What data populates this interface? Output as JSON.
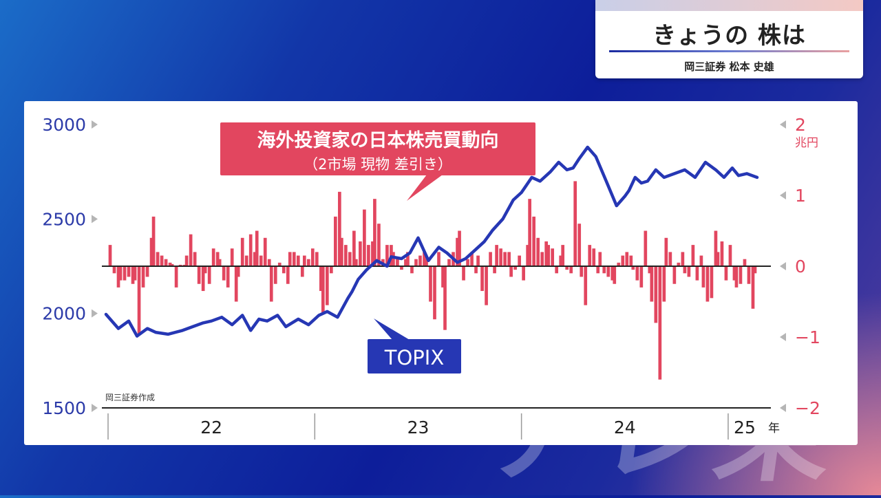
{
  "header": {
    "title": "きょうの 株は",
    "speaker": "岡三証券 松本 史雄"
  },
  "watermark": "テレ東",
  "colors": {
    "topix": "#2637b4",
    "flow": "#e2465f",
    "left_axis": "#2b3aa8",
    "right_axis": "#e2465f"
  },
  "chart_data": {
    "type": "line+bar",
    "x_axis": {
      "labels": [
        "22",
        "23",
        "24",
        "25"
      ],
      "unit": "年",
      "range": [
        "2022-01",
        "2025-01"
      ]
    },
    "y_left": {
      "name": "TOPIX",
      "ticks": [
        "3000",
        "2500",
        "2000",
        "1500"
      ],
      "range": [
        1500,
        3000
      ]
    },
    "y_right": {
      "unit": "兆円",
      "ticks": [
        "2",
        "1",
        "0",
        "−1",
        "−2"
      ],
      "range": [
        -2,
        2
      ]
    },
    "annotations": {
      "flow_title": "海外投資家の日本株売買動向",
      "flow_subtitle": "（2市場 現物 差引き）",
      "topix_label": "TOPIX",
      "source": "岡三証券作成"
    },
    "series": [
      {
        "name": "TOPIX",
        "type": "line",
        "x": [
          2021.99,
          2022.05,
          2022.1,
          2022.14,
          2022.19,
          2022.23,
          2022.29,
          2022.36,
          2022.41,
          2022.46,
          2022.5,
          2022.55,
          2022.6,
          2022.65,
          2022.69,
          2022.73,
          2022.77,
          2022.82,
          2022.86,
          2022.92,
          2022.97,
          2023.02,
          2023.06,
          2023.11,
          2023.16,
          2023.18,
          2023.21,
          2023.25,
          2023.3,
          2023.35,
          2023.37,
          2023.42,
          2023.46,
          2023.5,
          2023.55,
          2023.6,
          2023.64,
          2023.69,
          2023.73,
          2023.78,
          2023.82,
          2023.86,
          2023.91,
          2023.96,
          2024.0,
          2024.05,
          2024.09,
          2024.14,
          2024.18,
          2024.22,
          2024.25,
          2024.28,
          2024.32,
          2024.36,
          2024.41,
          2024.46,
          2024.5,
          2024.52,
          2024.55,
          2024.58,
          2024.61,
          2024.65,
          2024.69,
          2024.74,
          2024.79,
          2024.84,
          2024.89,
          2024.94,
          2024.98,
          2025.02,
          2025.05,
          2025.09,
          2025.14
        ],
        "values": [
          1995,
          1920,
          1960,
          1880,
          1920,
          1900,
          1890,
          1910,
          1930,
          1950,
          1960,
          1980,
          1940,
          1990,
          1910,
          1970,
          1960,
          1990,
          1930,
          1970,
          1940,
          1990,
          2010,
          1980,
          2080,
          2115,
          2180,
          2230,
          2280,
          2250,
          2300,
          2290,
          2320,
          2400,
          2280,
          2350,
          2320,
          2270,
          2290,
          2340,
          2380,
          2440,
          2500,
          2600,
          2640,
          2720,
          2700,
          2750,
          2800,
          2760,
          2770,
          2820,
          2880,
          2830,
          2700,
          2570,
          2620,
          2650,
          2720,
          2690,
          2700,
          2760,
          2720,
          2740,
          2760,
          2720,
          2800,
          2760,
          2720,
          2770,
          2730,
          2740,
          2720
        ]
      },
      {
        "name": "海外投資家の日本株売買動向",
        "type": "bar",
        "x": [
          2022.01,
          2022.03,
          2022.05,
          2022.06,
          2022.08,
          2022.1,
          2022.12,
          2022.13,
          2022.15,
          2022.17,
          2022.19,
          2022.21,
          2022.22,
          2022.24,
          2022.26,
          2022.28,
          2022.3,
          2022.31,
          2022.33,
          2022.35,
          2022.37,
          2022.38,
          2022.4,
          2022.42,
          2022.44,
          2022.46,
          2022.47,
          2022.49,
          2022.51,
          2022.53,
          2022.54,
          2022.56,
          2022.58,
          2022.6,
          2022.62,
          2022.63,
          2022.65,
          2022.67,
          2022.69,
          2022.71,
          2022.72,
          2022.74,
          2022.76,
          2022.78,
          2022.79,
          2022.81,
          2022.83,
          2022.85,
          2022.87,
          2022.88,
          2022.9,
          2022.92,
          2022.94,
          2022.95,
          2022.97,
          2022.99,
          2023.01,
          2023.03,
          2023.04,
          2023.06,
          2023.08,
          2023.1,
          2023.12,
          2023.13,
          2023.15,
          2023.17,
          2023.19,
          2023.2,
          2023.22,
          2023.24,
          2023.26,
          2023.28,
          2023.29,
          2023.31,
          2023.33,
          2023.35,
          2023.37,
          2023.38,
          2023.4,
          2023.42,
          2023.44,
          2023.45,
          2023.47,
          2023.49,
          2023.51,
          2023.53,
          2023.54,
          2023.56,
          2023.58,
          2023.6,
          2023.62,
          2023.63,
          2023.65,
          2023.67,
          2023.69,
          2023.7,
          2023.72,
          2023.74,
          2023.76,
          2023.78,
          2023.79,
          2023.81,
          2023.83,
          2023.85,
          2023.87,
          2023.88,
          2023.9,
          2023.92,
          2023.94,
          2023.95,
          2023.97,
          2023.99,
          2024.01,
          2024.03,
          2024.04,
          2024.06,
          2024.08,
          2024.1,
          2024.12,
          2024.13,
          2024.15,
          2024.17,
          2024.19,
          2024.2,
          2024.22,
          2024.24,
          2024.26,
          2024.28,
          2024.29,
          2024.31,
          2024.33,
          2024.35,
          2024.37,
          2024.38,
          2024.4,
          2024.42,
          2024.44,
          2024.45,
          2024.47,
          2024.49,
          2024.51,
          2024.53,
          2024.54,
          2024.56,
          2024.58,
          2024.6,
          2024.62,
          2024.63,
          2024.65,
          2024.67,
          2024.69,
          2024.7,
          2024.72,
          2024.74,
          2024.76,
          2024.78,
          2024.79,
          2024.81,
          2024.83,
          2024.85,
          2024.87,
          2024.88,
          2024.9,
          2024.92,
          2024.94,
          2024.95,
          2024.97,
          2024.99,
          2025.01,
          2025.03,
          2025.04,
          2025.06,
          2025.08,
          2025.1,
          2025.12,
          2025.13
        ],
        "values": [
          0.3,
          -0.1,
          -0.3,
          -0.2,
          -0.2,
          -0.15,
          -0.25,
          -0.2,
          -0.95,
          -0.3,
          -0.15,
          0.4,
          0.7,
          0.2,
          0.15,
          0.1,
          0.05,
          0.03,
          -0.3,
          0.02,
          0.02,
          0.15,
          0.45,
          0.2,
          -0.25,
          -0.35,
          -0.1,
          -0.25,
          0.25,
          0.2,
          0.1,
          -0.2,
          -0.3,
          0.25,
          -0.5,
          -0.15,
          0.4,
          0.15,
          0.45,
          0.2,
          0.5,
          0.15,
          0.4,
          0.1,
          -0.5,
          -0.25,
          0.05,
          -0.1,
          -0.25,
          0.2,
          0.2,
          0.15,
          -0.15,
          0.15,
          0.1,
          0.25,
          0.2,
          -0.35,
          -0.65,
          -0.55,
          -0.1,
          0.7,
          1.05,
          0.4,
          0.3,
          0.2,
          0.5,
          0.1,
          0.35,
          0.8,
          0.3,
          0.35,
          0.95,
          0.6,
          0.1,
          0.3,
          0.3,
          0.2,
          0.1,
          -0.05,
          0.1,
          0.2,
          -0.1,
          0.1,
          0.15,
          0.2,
          0.1,
          -0.5,
          -0.75,
          0.2,
          -0.3,
          -0.9,
          0.1,
          0.2,
          0.4,
          0.5,
          -0.2,
          0.1,
          0.2,
          -0.1,
          0.15,
          -0.35,
          -0.55,
          0.2,
          -0.1,
          0.3,
          0.25,
          0.2,
          0.2,
          -0.15,
          -0.05,
          0.15,
          -0.2,
          0.3,
          0.95,
          0.7,
          0.4,
          0.2,
          0.35,
          0.3,
          0.25,
          -0.1,
          0.15,
          0.3,
          -0.05,
          -0.1,
          1.2,
          0.6,
          -0.15,
          -0.55,
          0.3,
          0.25,
          -0.1,
          0.2,
          -0.1,
          -0.15,
          -0.2,
          -0.25,
          0.05,
          0.15,
          0.2,
          0.15,
          -0.05,
          -0.2,
          -0.3,
          0.5,
          -0.1,
          -0.5,
          -0.8,
          -1.6,
          -0.5,
          0.4,
          0.2,
          -0.25,
          0.05,
          0.2,
          -0.1,
          -0.15,
          0.3,
          -0.2,
          0.15,
          -0.3,
          -0.5,
          -0.45,
          0.5,
          0.2,
          0.35,
          -0.2,
          0.3,
          -0.2,
          -0.3,
          -0.25,
          0.1,
          -0.25,
          -0.6,
          -0.1
        ]
      }
    ]
  }
}
